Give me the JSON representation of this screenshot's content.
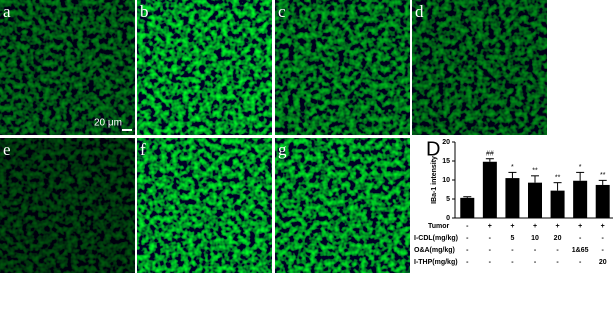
{
  "panels": [
    "a",
    "b",
    "c",
    "d",
    "e",
    "f",
    "g"
  ],
  "scale_bar": "20 μm",
  "chart_data": {
    "type": "bar",
    "panel_label": "D",
    "ylabel": "IBa-1 intensity",
    "values": [
      5.3,
      14.8,
      10.5,
      9.3,
      7.2,
      9.8,
      8.7
    ],
    "errors": [
      0.3,
      0.8,
      1.5,
      1.8,
      2.1,
      2.2,
      1.2
    ],
    "annotations": [
      null,
      "##",
      "*",
      "**",
      "**",
      "*",
      "**"
    ],
    "color": "#000000",
    "ylim": [
      0,
      20
    ],
    "yticks": [
      0,
      5,
      10,
      15,
      20
    ],
    "treatments": [
      {
        "name": "Tumor",
        "values": [
          "-",
          "+",
          "+",
          "+",
          "+",
          "+",
          "+"
        ]
      },
      {
        "name": "I-CDL(mg/kg)",
        "values": [
          "-",
          "-",
          "5",
          "10",
          "20",
          "-",
          "-"
        ]
      },
      {
        "name": "O&A(mg/kg)",
        "values": [
          "-",
          "-",
          "-",
          "-",
          "-",
          "1&65",
          "-"
        ]
      },
      {
        "name": "I-THP(mg/kg)",
        "values": [
          "-",
          "-",
          "-",
          "-",
          "-",
          "-",
          "20"
        ]
      }
    ]
  }
}
